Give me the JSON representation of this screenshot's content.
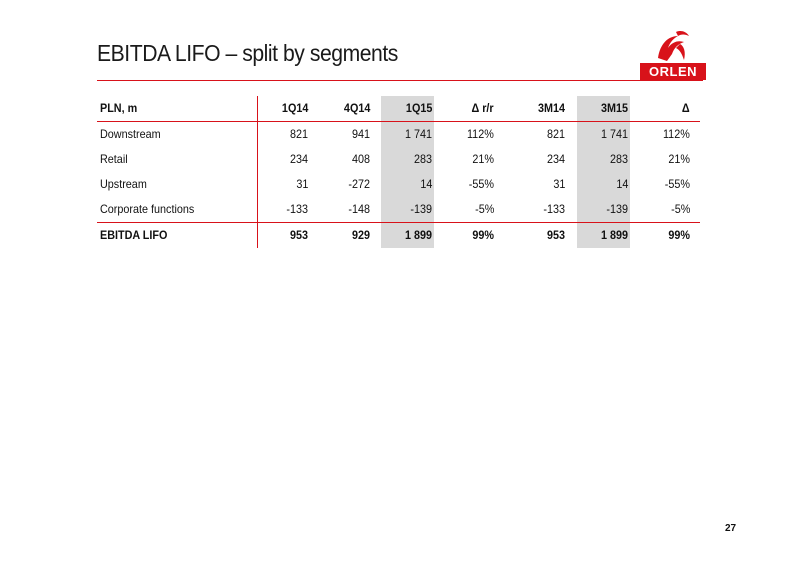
{
  "title": "EBITDA LIFO – split by segments",
  "logo_text": "ORLEN",
  "colors": {
    "accent": "#d8121a",
    "highlight": "#d9d9d9"
  },
  "table": {
    "headers": [
      "PLN, m",
      "1Q14",
      "4Q14",
      "1Q15",
      "Δ r/r",
      "3M14",
      "3M15",
      "Δ"
    ],
    "rows": [
      [
        "Downstream",
        "821",
        "941",
        "1 741",
        "112%",
        "821",
        "1 741",
        "112%"
      ],
      [
        "Retail",
        "234",
        "408",
        "283",
        "21%",
        "234",
        "283",
        "21%"
      ],
      [
        "Upstream",
        "31",
        "-272",
        "14",
        "-55%",
        "31",
        "14",
        "-55%"
      ],
      [
        "Corporate functions",
        "-133",
        "-148",
        "-139",
        "-5%",
        "-133",
        "-139",
        "-5%"
      ]
    ],
    "total": [
      "EBITDA LIFO",
      "953",
      "929",
      "1 899",
      "99%",
      "953",
      "1 899",
      "99%"
    ]
  },
  "page_number": "27"
}
